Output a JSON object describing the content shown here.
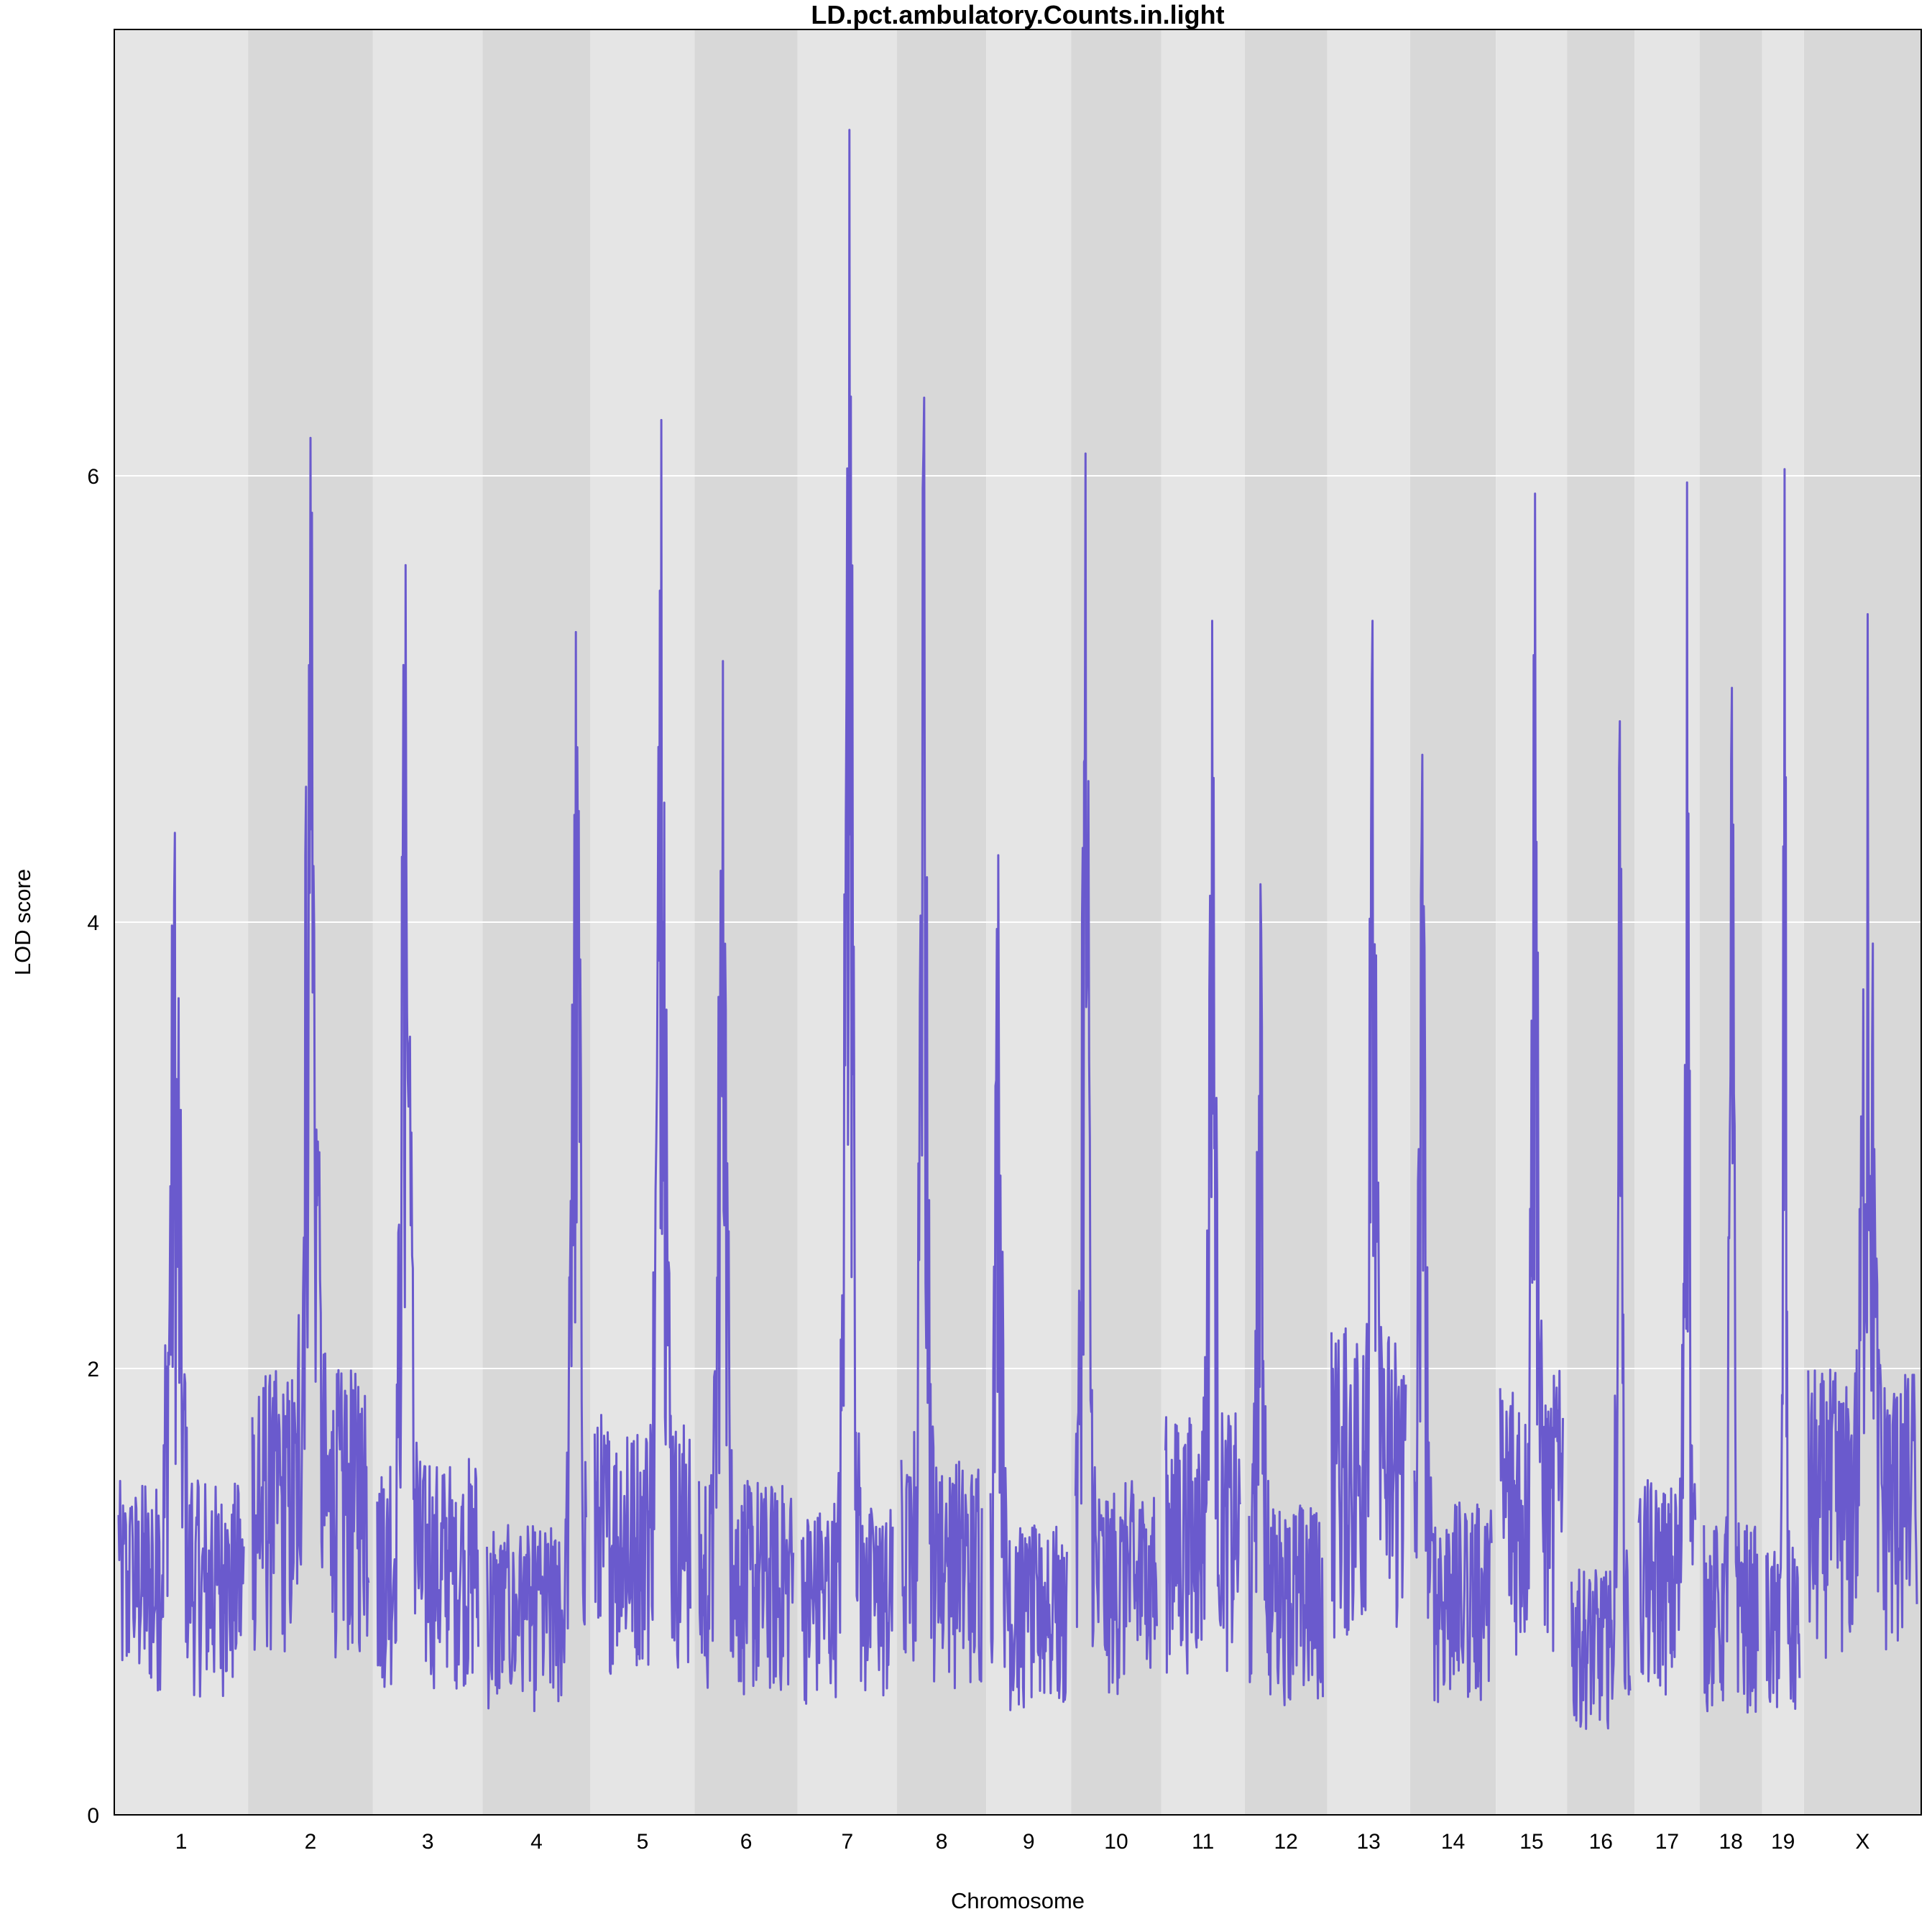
{
  "chart_data": {
    "type": "line",
    "title": "LD.pct.ambulatory.Counts.in.light",
    "xlabel": "Chromosome",
    "ylabel": "LOD score",
    "ylim": [
      0,
      8
    ],
    "yticks": [
      0,
      2,
      4,
      6
    ],
    "grid": "horizontal",
    "line_color": "#6A5ACD",
    "band_colors": [
      "#E5E5E5",
      "#D8D8D8"
    ],
    "chromosomes": [
      {
        "label": "1",
        "length": 195,
        "peak": 4.4,
        "peak_pos": 0.45,
        "base": 1.5
      },
      {
        "label": "2",
        "length": 182,
        "peak": 6.17,
        "peak_pos": 0.5,
        "base": 2.0
      },
      {
        "label": "3",
        "length": 160,
        "peak": 5.6,
        "peak_pos": 0.28,
        "base": 1.6
      },
      {
        "label": "4",
        "length": 157,
        "peak": 5.3,
        "peak_pos": 0.9,
        "base": 1.3
      },
      {
        "label": "5",
        "length": 152,
        "peak": 6.25,
        "peak_pos": 0.7,
        "base": 1.8
      },
      {
        "label": "6",
        "length": 150,
        "peak": 5.17,
        "peak_pos": 0.25,
        "base": 1.5
      },
      {
        "label": "7",
        "length": 145,
        "peak": 7.55,
        "peak_pos": 0.52,
        "base": 1.4
      },
      {
        "label": "8",
        "length": 130,
        "peak": 6.35,
        "peak_pos": 0.28,
        "base": 1.6
      },
      {
        "label": "9",
        "length": 124,
        "peak": 4.3,
        "peak_pos": 0.1,
        "base": 1.3
      },
      {
        "label": "10",
        "length": 131,
        "peak": 6.1,
        "peak_pos": 0.12,
        "base": 1.5
      },
      {
        "label": "11",
        "length": 122,
        "peak": 5.35,
        "peak_pos": 0.62,
        "base": 1.8
      },
      {
        "label": "12",
        "length": 120,
        "peak": 4.17,
        "peak_pos": 0.15,
        "base": 1.4
      },
      {
        "label": "13",
        "length": 121,
        "peak": 5.35,
        "peak_pos": 0.55,
        "base": 2.2
      },
      {
        "label": "14",
        "length": 125,
        "peak": 4.75,
        "peak_pos": 0.1,
        "base": 1.4
      },
      {
        "label": "15",
        "length": 104,
        "peak": 5.92,
        "peak_pos": 0.55,
        "base": 2.0
      },
      {
        "label": "16",
        "length": 98,
        "peak": 4.9,
        "peak_pos": 0.82,
        "base": 1.1
      },
      {
        "label": "17",
        "length": 95,
        "peak": 5.97,
        "peak_pos": 0.85,
        "base": 1.5
      },
      {
        "label": "18",
        "length": 91,
        "peak": 5.05,
        "peak_pos": 0.52,
        "base": 1.3
      },
      {
        "label": "19",
        "length": 61,
        "peak": 6.03,
        "peak_pos": 0.55,
        "base": 1.2
      },
      {
        "label": "X",
        "length": 171,
        "peak": 5.38,
        "peak_pos": 0.55,
        "base": 2.0
      }
    ]
  }
}
